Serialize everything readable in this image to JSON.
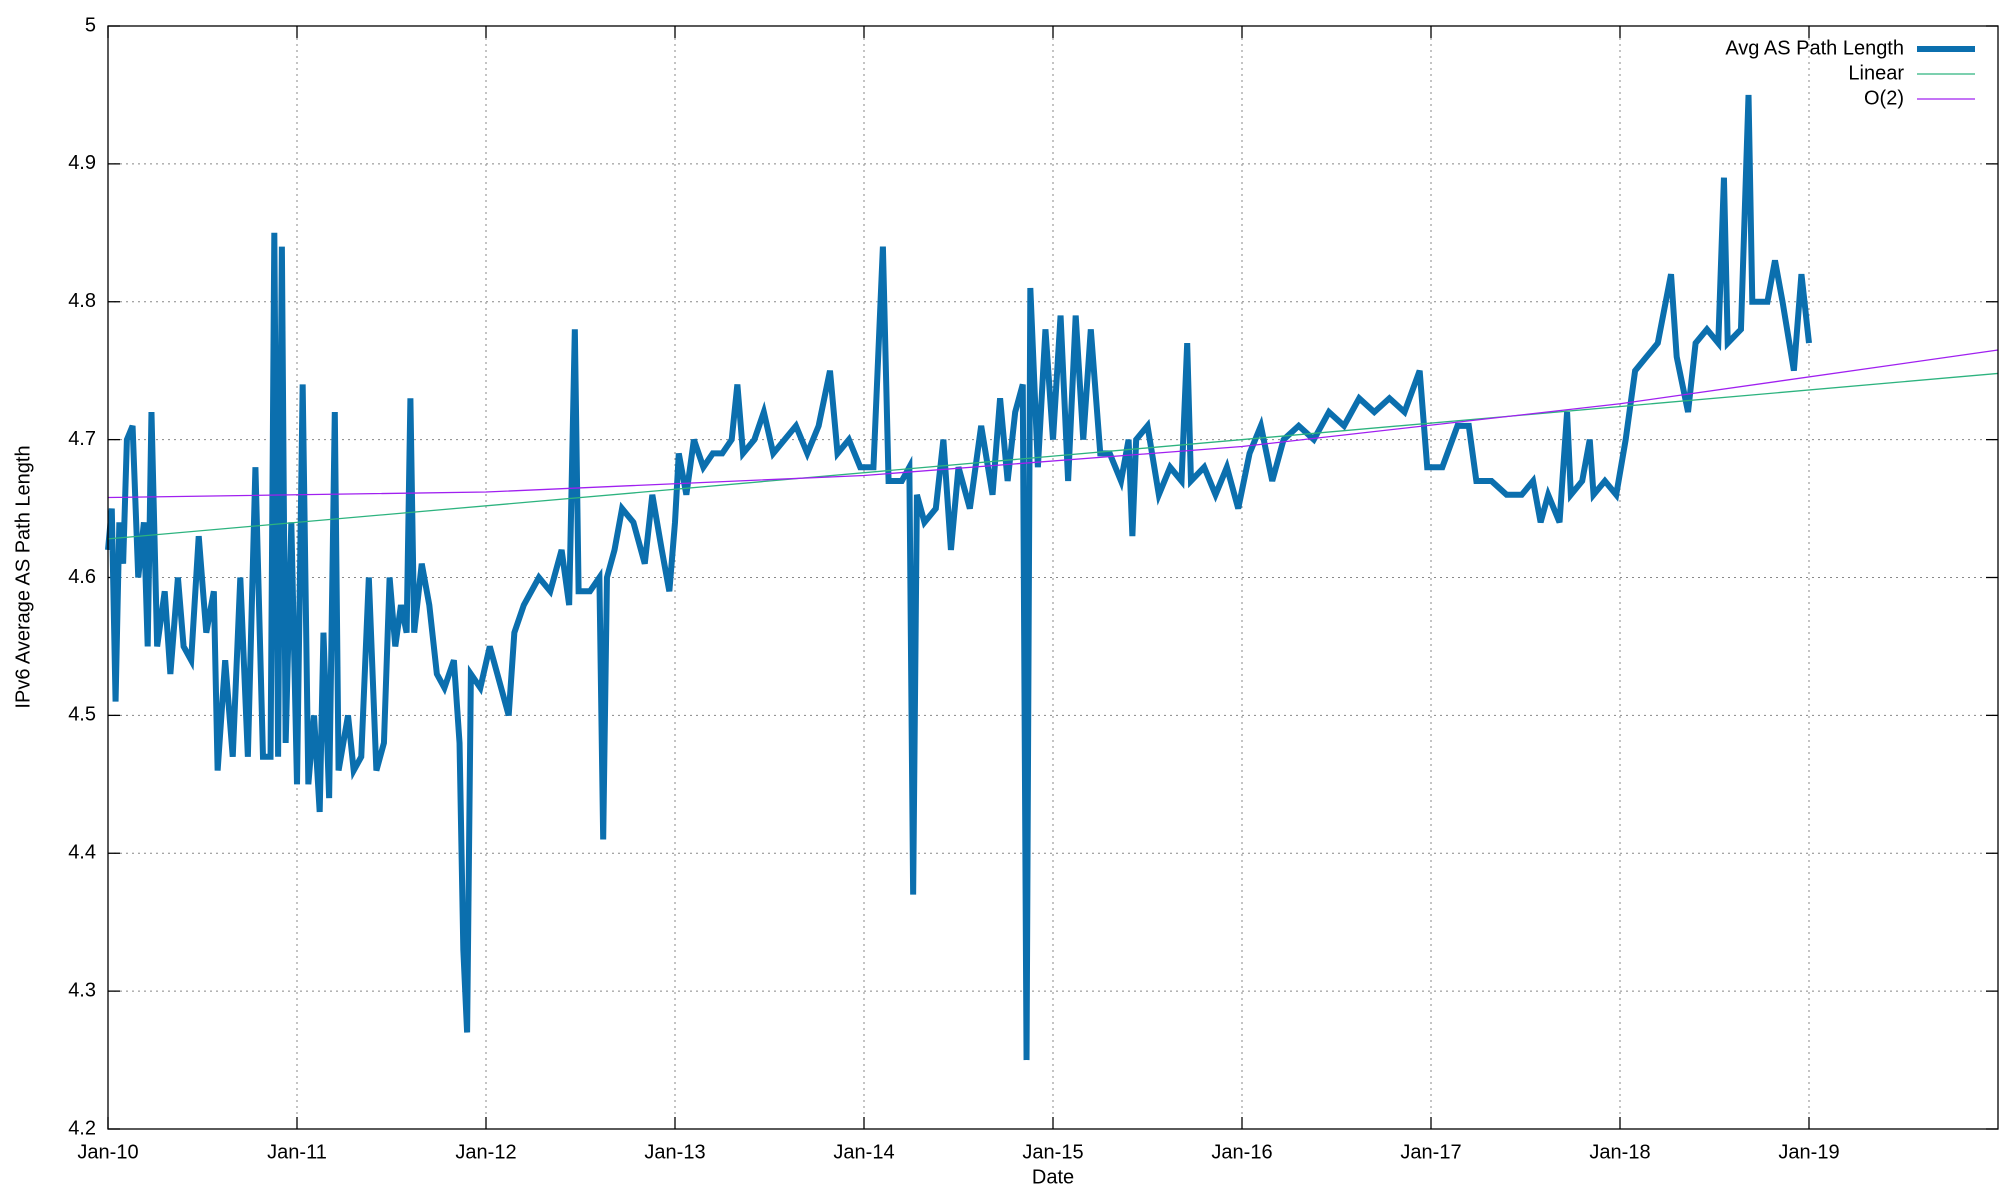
{
  "chart_data": {
    "type": "line",
    "x_label": "Date",
    "y_label": "IPv6 Average AS Path Length",
    "xlim": [
      2010,
      2020
    ],
    "ylim": [
      4.2,
      5
    ],
    "xticks": [
      {
        "value": 2010,
        "label": "Jan-10"
      },
      {
        "value": 2011,
        "label": "Jan-11"
      },
      {
        "value": 2012,
        "label": "Jan-12"
      },
      {
        "value": 2013,
        "label": "Jan-13"
      },
      {
        "value": 2014,
        "label": "Jan-14"
      },
      {
        "value": 2015,
        "label": "Jan-15"
      },
      {
        "value": 2016,
        "label": "Jan-16"
      },
      {
        "value": 2017,
        "label": "Jan-17"
      },
      {
        "value": 2018,
        "label": "Jan-18"
      },
      {
        "value": 2019,
        "label": "Jan-19"
      }
    ],
    "yticks": [
      4.2,
      4.3,
      4.4,
      4.5,
      4.6,
      4.7,
      4.8,
      4.9,
      5
    ],
    "grid": true,
    "legend": "top-right",
    "series": [
      {
        "name": "Avg AS Path Length",
        "color": "#0b6fae",
        "x": [
          2010.0,
          2010.02,
          2010.04,
          2010.06,
          2010.08,
          2010.1,
          2010.13,
          2010.16,
          2010.19,
          2010.21,
          2010.23,
          2010.26,
          2010.3,
          2010.33,
          2010.37,
          2010.4,
          2010.44,
          2010.48,
          2010.52,
          2010.56,
          2010.58,
          2010.62,
          2010.66,
          2010.7,
          2010.74,
          2010.78,
          2010.82,
          2010.86,
          2010.88,
          2010.9,
          2010.92,
          2010.94,
          2010.97,
          2011.0,
          2011.03,
          2011.06,
          2011.09,
          2011.12,
          2011.14,
          2011.17,
          2011.2,
          2011.22,
          2011.27,
          2011.3,
          2011.34,
          2011.38,
          2011.42,
          2011.46,
          2011.49,
          2011.52,
          2011.55,
          2011.58,
          2011.6,
          2011.62,
          2011.66,
          2011.7,
          2011.74,
          2011.78,
          2011.83,
          2011.86,
          2011.88,
          2011.9,
          2011.92,
          2011.97,
          2012.02,
          2012.08,
          2012.12,
          2012.15,
          2012.2,
          2012.28,
          2012.34,
          2012.4,
          2012.44,
          2012.47,
          2012.49,
          2012.55,
          2012.6,
          2012.62,
          2012.64,
          2012.68,
          2012.72,
          2012.78,
          2012.84,
          2012.88,
          2012.93,
          2012.97,
          2013.0,
          2013.02,
          2013.06,
          2013.1,
          2013.15,
          2013.2,
          2013.25,
          2013.3,
          2013.33,
          2013.36,
          2013.42,
          2013.47,
          2013.52,
          2013.58,
          2013.64,
          2013.7,
          2013.76,
          2013.82,
          2013.86,
          2013.92,
          2013.98,
          2014.05,
          2014.1,
          2014.13,
          2014.2,
          2014.24,
          2014.26,
          2014.28,
          2014.32,
          2014.38,
          2014.42,
          2014.46,
          2014.5,
          2014.56,
          2014.62,
          2014.68,
          2014.72,
          2014.76,
          2014.8,
          2014.84,
          2014.86,
          2014.88,
          2014.92,
          2014.96,
          2015.0,
          2015.04,
          2015.08,
          2015.12,
          2015.16,
          2015.2,
          2015.25,
          2015.3,
          2015.36,
          2015.4,
          2015.42,
          2015.44,
          2015.5,
          2015.56,
          2015.62,
          2015.68,
          2015.71,
          2015.73,
          2015.8,
          2015.86,
          2015.92,
          2015.98,
          2016.04,
          2016.1,
          2016.16,
          2016.22,
          2016.3,
          2016.38,
          2016.46,
          2016.54,
          2016.62,
          2016.7,
          2016.78,
          2016.86,
          2016.94,
          2016.98,
          2017.06,
          2017.14,
          2017.2,
          2017.24,
          2017.32,
          2017.4,
          2017.48,
          2017.54,
          2017.58,
          2017.62,
          2017.68,
          2017.72,
          2017.74,
          2017.8,
          2017.84,
          2017.86,
          2017.92,
          2017.98,
          2018.03,
          2018.08,
          2018.14,
          2018.2,
          2018.27,
          2018.3,
          2018.36,
          2018.4,
          2018.46,
          2018.52,
          2018.55,
          2018.57,
          2018.64,
          2018.68,
          2018.7,
          2018.78,
          2018.82,
          2018.86,
          2018.92,
          2018.96,
          2019.0
        ],
        "values": [
          4.62,
          4.65,
          4.51,
          4.64,
          4.61,
          4.7,
          4.71,
          4.6,
          4.64,
          4.55,
          4.72,
          4.55,
          4.59,
          4.53,
          4.6,
          4.55,
          4.54,
          4.63,
          4.56,
          4.59,
          4.46,
          4.54,
          4.47,
          4.6,
          4.47,
          4.68,
          4.47,
          4.47,
          4.85,
          4.47,
          4.84,
          4.48,
          4.64,
          4.45,
          4.74,
          4.45,
          4.5,
          4.43,
          4.56,
          4.44,
          4.72,
          4.46,
          4.5,
          4.46,
          4.47,
          4.6,
          4.46,
          4.48,
          4.6,
          4.55,
          4.58,
          4.56,
          4.73,
          4.56,
          4.61,
          4.58,
          4.53,
          4.52,
          4.54,
          4.48,
          4.33,
          4.27,
          4.53,
          4.52,
          4.55,
          4.52,
          4.5,
          4.56,
          4.58,
          4.6,
          4.59,
          4.62,
          4.58,
          4.78,
          4.59,
          4.59,
          4.6,
          4.41,
          4.6,
          4.62,
          4.65,
          4.64,
          4.61,
          4.66,
          4.62,
          4.59,
          4.64,
          4.69,
          4.66,
          4.7,
          4.68,
          4.69,
          4.69,
          4.7,
          4.74,
          4.69,
          4.7,
          4.72,
          4.69,
          4.7,
          4.71,
          4.69,
          4.71,
          4.75,
          4.69,
          4.7,
          4.68,
          4.68,
          4.84,
          4.67,
          4.67,
          4.68,
          4.37,
          4.66,
          4.64,
          4.65,
          4.7,
          4.62,
          4.68,
          4.65,
          4.71,
          4.66,
          4.73,
          4.67,
          4.72,
          4.74,
          4.25,
          4.81,
          4.68,
          4.78,
          4.7,
          4.79,
          4.67,
          4.79,
          4.7,
          4.78,
          4.69,
          4.69,
          4.67,
          4.7,
          4.63,
          4.7,
          4.71,
          4.66,
          4.68,
          4.67,
          4.77,
          4.67,
          4.68,
          4.66,
          4.68,
          4.65,
          4.69,
          4.71,
          4.67,
          4.7,
          4.71,
          4.7,
          4.72,
          4.71,
          4.73,
          4.72,
          4.73,
          4.72,
          4.75,
          4.68,
          4.68,
          4.71,
          4.71,
          4.67,
          4.67,
          4.66,
          4.66,
          4.67,
          4.64,
          4.66,
          4.64,
          4.72,
          4.66,
          4.67,
          4.7,
          4.66,
          4.67,
          4.66,
          4.7,
          4.75,
          4.76,
          4.77,
          4.82,
          4.76,
          4.72,
          4.77,
          4.78,
          4.77,
          4.89,
          4.77,
          4.78,
          4.95,
          4.8,
          4.8,
          4.83,
          4.8,
          4.75,
          4.82,
          4.77
        ]
      },
      {
        "name": "Linear",
        "color": "#2db37f",
        "x": [
          2010,
          2020
        ],
        "values": [
          4.628,
          4.748
        ]
      },
      {
        "name": "O(2)",
        "color": "#a020f0",
        "x": [
          2010,
          2012,
          2014,
          2016,
          2018,
          2020
        ],
        "values": [
          4.658,
          4.662,
          4.674,
          4.695,
          4.726,
          4.765
        ]
      }
    ]
  }
}
